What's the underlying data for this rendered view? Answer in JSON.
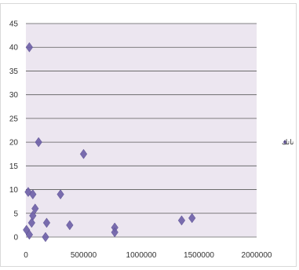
{
  "chart_data": {
    "type": "scatter",
    "title": "",
    "xlabel": "",
    "ylabel": "",
    "xlim": [
      0,
      2000000
    ],
    "ylim": [
      0,
      45
    ],
    "x_ticks": [
      "0",
      "500000",
      "1000000",
      "1500000",
      "2000000"
    ],
    "y_ticks": [
      "0",
      "5",
      "10",
      "15",
      "20",
      "25",
      "30",
      "35",
      "40",
      "45"
    ],
    "grid": "horizontal",
    "plot_background": "#ece6f0",
    "marker_color": "#6f62a8",
    "legend_position": "right",
    "series": [
      {
        "name": "ناتك",
        "marker": "diamond",
        "points": [
          {
            "x": 30000,
            "y": 40
          },
          {
            "x": 110000,
            "y": 20
          },
          {
            "x": 20000,
            "y": 9.5
          },
          {
            "x": 60000,
            "y": 9
          },
          {
            "x": 300000,
            "y": 9
          },
          {
            "x": 500000,
            "y": 17.5
          },
          {
            "x": 80000,
            "y": 6
          },
          {
            "x": 60000,
            "y": 4.5
          },
          {
            "x": 50000,
            "y": 3
          },
          {
            "x": 180000,
            "y": 3
          },
          {
            "x": 380000,
            "y": 2.5
          },
          {
            "x": 5000,
            "y": 1.5
          },
          {
            "x": 30000,
            "y": 0.5
          },
          {
            "x": 170000,
            "y": 0
          },
          {
            "x": 770000,
            "y": 2
          },
          {
            "x": 770000,
            "y": 1
          },
          {
            "x": 1350000,
            "y": 3.5
          },
          {
            "x": 1440000,
            "y": 4
          }
        ]
      }
    ]
  }
}
